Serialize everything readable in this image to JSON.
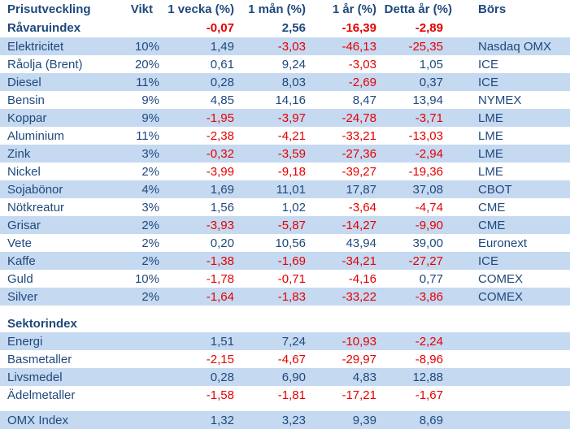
{
  "palette": {
    "row_highlight": "#C5D9F1",
    "text_blue": "#1F497D",
    "negative_red": "#E60000",
    "background": "#FFFFFF"
  },
  "chart_data": {
    "type": "table",
    "title": "Prisutveckling",
    "columns": [
      "Prisutveckling",
      "Vikt",
      "1 vecka (%)",
      "1 mån (%)",
      "1 år (%)",
      "Detta år (%)",
      "Börs"
    ],
    "rows": [
      {
        "label": "Råvaruindex",
        "bold": true,
        "highlight": false,
        "index": true,
        "values": [
          "",
          "-0,07",
          "2,56",
          "-16,39",
          "-2,89",
          ""
        ]
      },
      {
        "label": "Elektricitet",
        "bold": false,
        "highlight": true,
        "values": [
          "10%",
          "1,49",
          "-3,03",
          "-46,13",
          "-25,35",
          "Nasdaq OMX"
        ]
      },
      {
        "label": "Råolja (Brent)",
        "bold": false,
        "highlight": false,
        "values": [
          "20%",
          "0,61",
          "9,24",
          "-3,03",
          "1,05",
          "ICE"
        ]
      },
      {
        "label": "Diesel",
        "bold": false,
        "highlight": true,
        "values": [
          "11%",
          "0,28",
          "8,03",
          "-2,69",
          "0,37",
          "ICE"
        ]
      },
      {
        "label": "Bensin",
        "bold": false,
        "highlight": false,
        "values": [
          "9%",
          "4,85",
          "14,16",
          "8,47",
          "13,94",
          "NYMEX"
        ]
      },
      {
        "label": "Koppar",
        "bold": false,
        "highlight": true,
        "values": [
          "9%",
          "-1,95",
          "-3,97",
          "-24,78",
          "-3,71",
          "LME"
        ]
      },
      {
        "label": "Aluminium",
        "bold": false,
        "highlight": false,
        "values": [
          "11%",
          "-2,38",
          "-4,21",
          "-33,21",
          "-13,03",
          "LME"
        ]
      },
      {
        "label": "Zink",
        "bold": false,
        "highlight": true,
        "values": [
          "3%",
          "-0,32",
          "-3,59",
          "-27,36",
          "-2,94",
          "LME"
        ]
      },
      {
        "label": "Nickel",
        "bold": false,
        "highlight": false,
        "values": [
          "2%",
          "-3,99",
          "-9,18",
          "-39,27",
          "-19,36",
          "LME"
        ]
      },
      {
        "label": "Sojabönor",
        "bold": false,
        "highlight": true,
        "values": [
          "4%",
          "1,69",
          "11,01",
          "17,87",
          "37,08",
          "CBOT"
        ]
      },
      {
        "label": "Nötkreatur",
        "bold": false,
        "highlight": false,
        "values": [
          "3%",
          "1,56",
          "1,02",
          "-3,64",
          "-4,74",
          "CME"
        ]
      },
      {
        "label": "Grisar",
        "bold": false,
        "highlight": true,
        "values": [
          "2%",
          "-3,93",
          "-5,87",
          "-14,27",
          "-9,90",
          "CME"
        ]
      },
      {
        "label": "Vete",
        "bold": false,
        "highlight": false,
        "values": [
          "2%",
          "0,20",
          "10,56",
          "43,94",
          "39,00",
          "Euronext"
        ]
      },
      {
        "label": "Kaffe",
        "bold": false,
        "highlight": true,
        "values": [
          "2%",
          "-1,38",
          "-1,69",
          "-34,21",
          "-27,27",
          "ICE"
        ]
      },
      {
        "label": "Guld",
        "bold": false,
        "highlight": false,
        "values": [
          "10%",
          "-1,78",
          "-0,71",
          "-4,16",
          "0,77",
          "COMEX"
        ]
      },
      {
        "label": "Silver",
        "bold": false,
        "highlight": true,
        "values": [
          "2%",
          "-1,64",
          "-1,83",
          "-33,22",
          "-3,86",
          "COMEX"
        ]
      },
      {
        "type": "spacer",
        "height": 11
      },
      {
        "label": "Sektorindex",
        "bold": true,
        "highlight": false,
        "values": [
          "",
          "",
          "",
          "",
          "",
          ""
        ]
      },
      {
        "label": "Energi",
        "bold": false,
        "highlight": true,
        "values": [
          "",
          "1,51",
          "7,24",
          "-10,93",
          "-2,24",
          ""
        ]
      },
      {
        "label": "Basmetaller",
        "bold": false,
        "highlight": false,
        "values": [
          "",
          "-2,15",
          "-4,67",
          "-29,97",
          "-8,96",
          ""
        ]
      },
      {
        "label": "Livsmedel",
        "bold": false,
        "highlight": true,
        "values": [
          "",
          "0,28",
          "6,90",
          "4,83",
          "12,88",
          ""
        ]
      },
      {
        "label": "Ädelmetaller",
        "bold": false,
        "highlight": false,
        "values": [
          "",
          "-1,58",
          "-1,81",
          "-17,21",
          "-1,67",
          ""
        ]
      },
      {
        "type": "spacer",
        "height": 9
      },
      {
        "label": "OMX Index",
        "bold": false,
        "highlight": true,
        "values": [
          "",
          "1,32",
          "3,23",
          "9,39",
          "8,69",
          ""
        ]
      }
    ]
  }
}
